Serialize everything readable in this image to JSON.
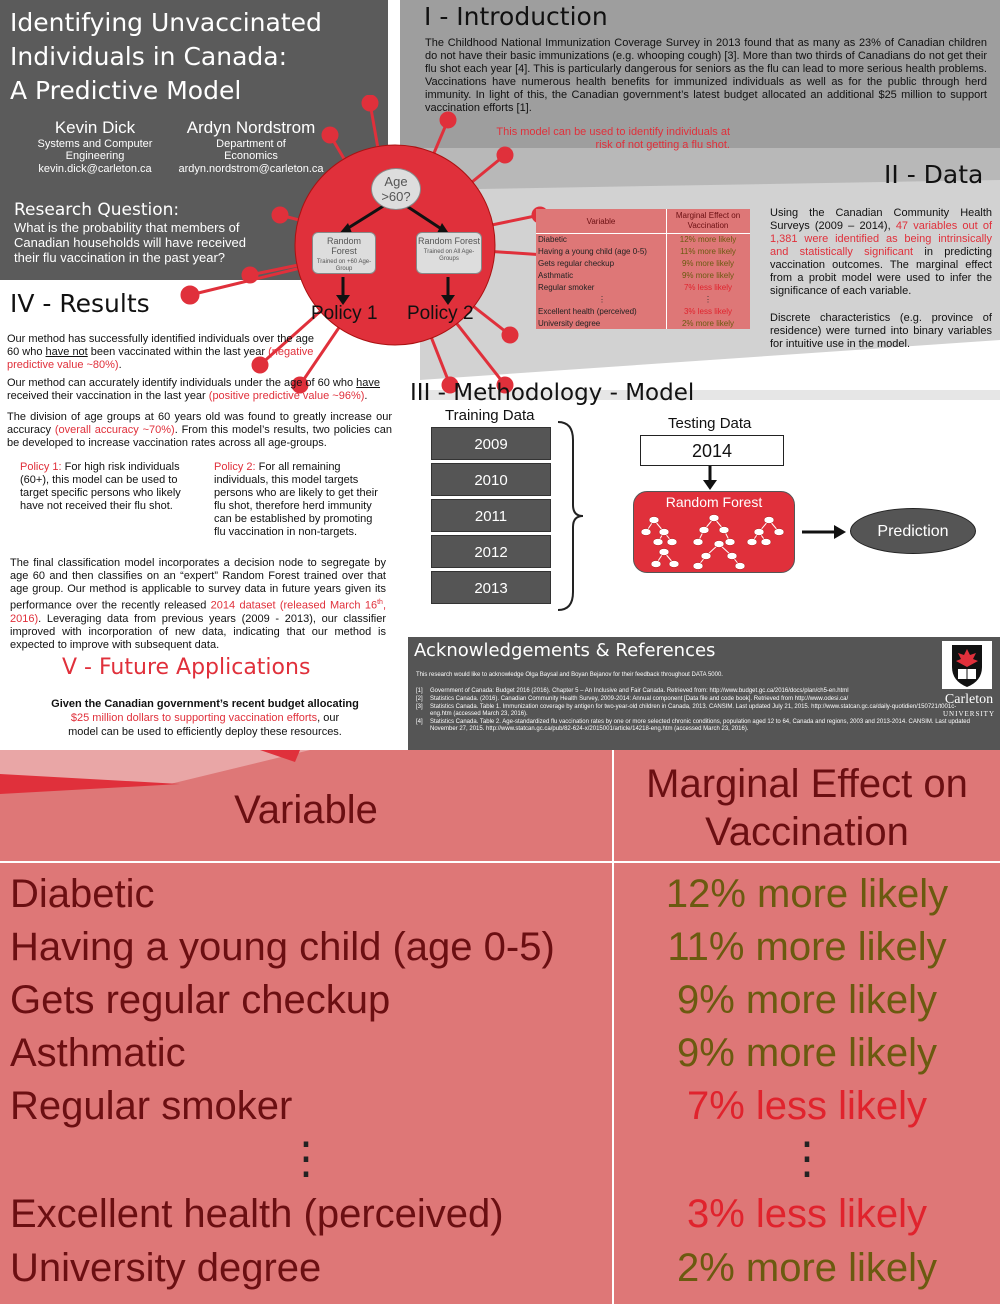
{
  "title": {
    "line1": "Identifying Unvaccinated",
    "line2": "Individuals in Canada:",
    "line3": "A Predictive Model"
  },
  "authors": [
    {
      "name": "Kevin Dick",
      "dept1": "Systems and Computer",
      "dept2": "Engineering",
      "email": "kevin.dick@carleton.ca"
    },
    {
      "name": "Ardyn Nordstrom",
      "dept1": "Department of",
      "dept2": "Economics",
      "email": "ardyn.nordstrom@carleton.ca"
    }
  ],
  "research_question": {
    "heading": "Research Question:",
    "text": "What is the probability that members of Canadian households will have received their flu vaccination in the past year?"
  },
  "virus": {
    "node": "Age\n>60?",
    "rf1_title": "Random Forest",
    "rf1_sub": "Trained on +60 Age-Group",
    "rf2_title": "Random Forest",
    "rf2_sub": "Trained on All Age-Groups",
    "policy1": "Policy 1",
    "policy2": "Policy 2"
  },
  "intro": {
    "heading": "I - Introduction",
    "body": "The Childhood National Immunization Coverage Survey in 2013 found that as many as 23% of Canadian children do not have their basic immunizations (e.g. whooping cough) [3]. More than two thirds of Canadians do not get their flu shot each year [4]. This is particularly dangerous for seniors as the flu can lead to more serious health problems. Vaccinations have numerous health benefits for immunized individuals as well as for the public through herd immunity. In light of this, the Canadian government’s latest budget allocated an additional $25 million to support vaccination efforts [1].",
    "highlight1": "This model can be used to identify individuals at",
    "highlight2": "risk of not getting a flu shot."
  },
  "data_section": {
    "heading": "II - Data",
    "p1_a": "Using the Canadian Community Health Surveys (2009 – 2014), ",
    "p1_red": "47 variables out of 1,381 were identified as being intrinsically and statistically significant",
    "p1_b": " in predicting vaccination outcomes. The marginal effect from a probit model were used to infer the significance of each variable.",
    "p2": "Discrete characteristics (e.g. province of residence) were turned into binary variables for intuitive use in the model."
  },
  "table": {
    "col1": "Variable",
    "col2_line1": "Marginal Effect on",
    "col2_line2": "Vaccination",
    "rows": [
      {
        "variable": "Diabetic",
        "effect": "12% more likely",
        "dir": "more"
      },
      {
        "variable": "Having a young child (age 0-5)",
        "effect": "11% more likely",
        "dir": "more"
      },
      {
        "variable": "Gets regular checkup",
        "effect": "9% more likely",
        "dir": "more"
      },
      {
        "variable": "Asthmatic",
        "effect": "9% more likely",
        "dir": "more"
      },
      {
        "variable": "Regular smoker",
        "effect": "7% less likely",
        "dir": "less"
      },
      {
        "variable": "⋮",
        "effect": "⋮",
        "dir": "dots"
      },
      {
        "variable": "Excellent health (perceived)",
        "effect": "3% less likely",
        "dir": "less"
      },
      {
        "variable": "University degree",
        "effect": "2% more likely",
        "dir": "more"
      }
    ]
  },
  "results": {
    "heading": "IV - Results",
    "p1_a": "Our method has successfully identified individuals over the age 60 who ",
    "p1_u": "have not",
    "p1_b": " been vaccinated within the last year ",
    "p1_red": "(negative predictive value ~80%)",
    "p1_end": ".",
    "p2_a": "Our method can accurately identify individuals under the age of 60 who ",
    "p2_u": "have",
    "p2_b": " received their vaccination in the last year ",
    "p2_red": "(positive predictive value ~96%)",
    "p2_end": ".",
    "p3_a": "The division of age groups at 60 years old was found to greatly increase our accuracy ",
    "p3_red": "(overall accuracy ~70%)",
    "p3_b": ". From this model’s results, two policies can be developed to increase vaccination rates across all age-groups.",
    "policy1_label": "Policy 1:",
    "policy1_text": " For high risk individuals (60+), this model can be used to target specific persons who likely have not received their flu shot.",
    "policy2_label": "Policy 2:",
    "policy2_text": " For all remaining individuals, this model targets persons who are likely to get their flu shot, therefore herd immunity can be established by promoting flu vaccination in non-targets.",
    "p4_a": "The final classification model incorporates a decision node to segregate by age 60 and then classifies on an “expert” Random Forest trained over that age group. Our method is applicable to survey data in future years given its performance over the recently released ",
    "p4_red1": "2014 dataset (released March 16",
    "p4_sup": "th",
    "p4_red2": ", 2016)",
    "p4_b": ". Leveraging data from previous years (2009 - 2013), our classifier improved with incorporation of new data, indicating that our method is expected to improve with subsequent data."
  },
  "future": {
    "heading": "V - Future Applications",
    "line1": "Given the Canadian government’s recent budget allocating",
    "line2_red": "$25 million dollars to supporting vaccination efforts",
    "line2_b": ", our",
    "line3": "model can be used  to efficiently deploy these resources."
  },
  "methodology": {
    "heading": "III - Methodology - Model",
    "training_label": "Training Data",
    "years": [
      "2009",
      "2010",
      "2011",
      "2012",
      "2013"
    ],
    "testing_label": "Testing Data",
    "test_year": "2014",
    "rf_label": "Random Forest",
    "prediction": "Prediction"
  },
  "ack": {
    "heading": "Acknowledgements & References",
    "thanks": "This research would like to acknowledge Olga Baysal and Boyan Bejanov for their feedback throughout DATA 5000.",
    "refs": [
      {
        "n": "[1]",
        "text": "Government of Canada: Budget 2016 (2016). Chapter 5 – An Inclusive and Fair Canada. Retrieved from: http://www.budget.gc.ca/2016/docs/plan/ch5-en.html"
      },
      {
        "n": "[2]",
        "text": "Statistics Canada. (2016). Canadian Community Health Survey, 2009-2014: Annual component [Data file and code book]. Retrieved from http://www.odesi.ca/"
      },
      {
        "n": "[3]",
        "text": "Statistics Canada. Table 1. Immunization coverage by antigen for two-year-old children in Canada, 2013. CANSIM. Last updated July 21, 2015. http://www.statcan.gc.ca/daily-quotidien/150721/t001c-eng.htm (accessed March 23, 2016)."
      },
      {
        "n": "[4]",
        "text": "Statistics Canada. Table 2. Age-standardized flu vaccination rates by one or more selected chronic conditions, population aged 12 to 64, Canada and regions, 2003 and 2013-2014. CANSIM. Last updated November 27, 2015. http://www.statcan.gc.ca/pub/82-624-x/2015001/article/14218-eng.htm (accessed March 23, 2016)."
      }
    ],
    "logo_line1": "Carleton",
    "logo_line2": "UNIVERSITY"
  },
  "colors": {
    "accent_red": "#e0303b",
    "dark_gray": "#5b5b5b",
    "zoom_bg": "#de7777",
    "more_text": "#6b5a10",
    "less_text": "#e0232d"
  }
}
